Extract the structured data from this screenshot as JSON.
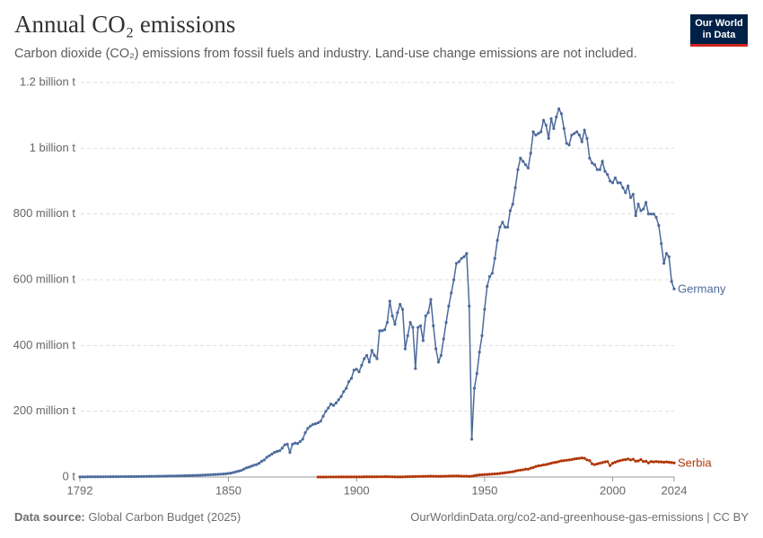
{
  "chart_data": {
    "type": "line",
    "title": "Annual CO₂ emissions",
    "subtitle": "Carbon dioxide (CO₂) emissions from fossil fuels and industry. Land-use change emissions are not included.",
    "logo": [
      "Our World",
      "in Data"
    ],
    "source_label": "Data source:",
    "source": "Global Carbon Budget (2025)",
    "url": "OurWorldinData.org/co2-and-greenhouse-gas-emissions | CC BY",
    "xlim": [
      1792,
      2024
    ],
    "xticks": [
      1792,
      1850,
      1900,
      1950,
      2000,
      2024
    ],
    "ylim": [
      0,
      1200000000
    ],
    "yticks": [
      {
        "value": 0,
        "label": "0 t"
      },
      {
        "value": 200000000,
        "label": "200 million t"
      },
      {
        "value": 400000000,
        "label": "400 million t"
      },
      {
        "value": 600000000,
        "label": "600 million t"
      },
      {
        "value": 800000000,
        "label": "800 million t"
      },
      {
        "value": 1000000000,
        "label": "1 billion t"
      },
      {
        "value": 1200000000,
        "label": "1.2 billion t"
      }
    ],
    "grid": true,
    "x": [
      1792,
      1793,
      1794,
      1795,
      1796,
      1797,
      1798,
      1799,
      1800,
      1801,
      1802,
      1803,
      1804,
      1805,
      1806,
      1807,
      1808,
      1809,
      1810,
      1811,
      1812,
      1813,
      1814,
      1815,
      1816,
      1817,
      1818,
      1819,
      1820,
      1821,
      1822,
      1823,
      1824,
      1825,
      1826,
      1827,
      1828,
      1829,
      1830,
      1831,
      1832,
      1833,
      1834,
      1835,
      1836,
      1837,
      1838,
      1839,
      1840,
      1841,
      1842,
      1843,
      1844,
      1845,
      1846,
      1847,
      1848,
      1849,
      1850,
      1851,
      1852,
      1853,
      1854,
      1855,
      1856,
      1857,
      1858,
      1859,
      1860,
      1861,
      1862,
      1863,
      1864,
      1865,
      1866,
      1867,
      1868,
      1869,
      1870,
      1871,
      1872,
      1873,
      1874,
      1875,
      1876,
      1877,
      1878,
      1879,
      1880,
      1881,
      1882,
      1883,
      1884,
      1885,
      1886,
      1887,
      1888,
      1889,
      1890,
      1891,
      1892,
      1893,
      1894,
      1895,
      1896,
      1897,
      1898,
      1899,
      1900,
      1901,
      1902,
      1903,
      1904,
      1905,
      1906,
      1907,
      1908,
      1909,
      1910,
      1911,
      1912,
      1913,
      1914,
      1915,
      1916,
      1917,
      1918,
      1919,
      1920,
      1921,
      1922,
      1923,
      1924,
      1925,
      1926,
      1927,
      1928,
      1929,
      1930,
      1931,
      1932,
      1933,
      1934,
      1935,
      1936,
      1937,
      1938,
      1939,
      1940,
      1941,
      1942,
      1943,
      1944,
      1945,
      1946,
      1947,
      1948,
      1949,
      1950,
      1951,
      1952,
      1953,
      1954,
      1955,
      1956,
      1957,
      1958,
      1959,
      1960,
      1961,
      1962,
      1963,
      1964,
      1965,
      1966,
      1967,
      1968,
      1969,
      1970,
      1971,
      1972,
      1973,
      1974,
      1975,
      1976,
      1977,
      1978,
      1979,
      1980,
      1981,
      1982,
      1983,
      1984,
      1985,
      1986,
      1987,
      1988,
      1989,
      1990,
      1991,
      1992,
      1993,
      1994,
      1995,
      1996,
      1997,
      1998,
      1999,
      2000,
      2001,
      2002,
      2003,
      2004,
      2005,
      2006,
      2007,
      2008,
      2009,
      2010,
      2011,
      2012,
      2013,
      2014,
      2015,
      2016,
      2017,
      2018,
      2019,
      2020,
      2021,
      2022,
      2023,
      2024
    ],
    "series": [
      {
        "name": "Germany",
        "color": "#4c6a9c",
        "values": [
          500000,
          500000,
          500000,
          600000,
          600000,
          600000,
          700000,
          700000,
          800000,
          800000,
          900000,
          900000,
          1000000,
          1000000,
          1100000,
          1100000,
          1200000,
          1200000,
          1300000,
          1300000,
          1400000,
          1500000,
          1500000,
          1600000,
          1700000,
          1800000,
          1900000,
          2000000,
          2100000,
          2200000,
          2300000,
          2400000,
          2500000,
          2700000,
          2800000,
          3000000,
          3100000,
          3300000,
          3500000,
          3600000,
          3800000,
          4000000,
          4200000,
          4400000,
          4700000,
          5000000,
          5300000,
          5600000,
          6000000,
          6300000,
          6700000,
          7000000,
          7400000,
          7800000,
          8200000,
          8700000,
          9200000,
          9800000,
          11000000,
          12000000,
          14000000,
          16000000,
          18000000,
          20000000,
          24000000,
          28000000,
          30000000,
          33000000,
          36000000,
          38000000,
          42000000,
          48000000,
          52000000,
          60000000,
          65000000,
          70000000,
          75000000,
          78000000,
          80000000,
          88000000,
          98000000,
          100000000,
          75000000,
          100000000,
          103000000,
          102000000,
          108000000,
          115000000,
          135000000,
          148000000,
          155000000,
          160000000,
          162000000,
          165000000,
          170000000,
          185000000,
          200000000,
          210000000,
          222000000,
          218000000,
          225000000,
          235000000,
          245000000,
          260000000,
          270000000,
          290000000,
          300000000,
          325000000,
          328000000,
          320000000,
          340000000,
          360000000,
          370000000,
          350000000,
          385000000,
          370000000,
          360000000,
          445000000,
          445000000,
          448000000,
          470000000,
          535000000,
          490000000,
          465000000,
          500000000,
          525000000,
          510000000,
          390000000,
          430000000,
          470000000,
          455000000,
          330000000,
          455000000,
          460000000,
          415000000,
          490000000,
          500000000,
          540000000,
          460000000,
          390000000,
          350000000,
          370000000,
          420000000,
          470000000,
          520000000,
          560000000,
          600000000,
          650000000,
          655000000,
          665000000,
          670000000,
          680000000,
          520000000,
          115000000,
          270000000,
          315000000,
          380000000,
          430000000,
          510000000,
          580000000,
          610000000,
          620000000,
          665000000,
          720000000,
          760000000,
          775000000,
          760000000,
          760000000,
          810000000,
          830000000,
          880000000,
          935000000,
          970000000,
          960000000,
          950000000,
          940000000,
          985000000,
          1050000000,
          1040000000,
          1045000000,
          1050000000,
          1085000000,
          1070000000,
          1030000000,
          1090000000,
          1060000000,
          1095000000,
          1120000000,
          1105000000,
          1060000000,
          1015000000,
          1010000000,
          1040000000,
          1045000000,
          1050000000,
          1040000000,
          1020000000,
          1055000000,
          1030000000,
          970000000,
          955000000,
          950000000,
          935000000,
          935000000,
          960000000,
          930000000,
          920000000,
          900000000,
          895000000,
          910000000,
          895000000,
          895000000,
          880000000,
          865000000,
          885000000,
          850000000,
          860000000,
          795000000,
          830000000,
          810000000,
          815000000,
          835000000,
          800000000,
          800000000,
          800000000,
          790000000,
          765000000,
          710000000,
          650000000,
          680000000,
          670000000,
          595000000,
          572000000
        ]
      },
      {
        "name": "Serbia",
        "color": "#b13507",
        "values": [
          null,
          null,
          null,
          null,
          null,
          null,
          null,
          null,
          null,
          null,
          null,
          null,
          null,
          null,
          null,
          null,
          null,
          null,
          null,
          null,
          null,
          null,
          null,
          null,
          null,
          null,
          null,
          null,
          null,
          null,
          null,
          null,
          null,
          null,
          null,
          null,
          null,
          null,
          null,
          null,
          null,
          null,
          null,
          null,
          null,
          null,
          null,
          null,
          null,
          null,
          null,
          null,
          null,
          null,
          null,
          null,
          null,
          null,
          null,
          null,
          null,
          null,
          null,
          null,
          null,
          null,
          null,
          null,
          null,
          null,
          null,
          null,
          null,
          null,
          null,
          null,
          null,
          null,
          null,
          null,
          null,
          null,
          null,
          null,
          null,
          null,
          null,
          null,
          null,
          null,
          null,
          null,
          null,
          100000,
          100000,
          100000,
          100000,
          200000,
          200000,
          200000,
          200000,
          300000,
          300000,
          300000,
          300000,
          400000,
          400000,
          400000,
          500000,
          500000,
          500000,
          600000,
          600000,
          700000,
          700000,
          800000,
          800000,
          900000,
          900000,
          1000000,
          1000000,
          900000,
          800000,
          500000,
          400000,
          400000,
          500000,
          800000,
          1000000,
          1200000,
          1400000,
          1600000,
          1700000,
          1900000,
          2000000,
          2100000,
          2300000,
          2500000,
          2400000,
          2200000,
          2000000,
          2100000,
          2300000,
          2500000,
          2700000,
          3000000,
          3200000,
          3300000,
          3300000,
          2500000,
          2500000,
          2400000,
          2000000,
          2500000,
          4000000,
          5500000,
          6500000,
          7000000,
          7500000,
          8000000,
          8500000,
          9000000,
          9500000,
          10000000,
          11000000,
          12000000,
          13000000,
          14000000,
          15000000,
          16000000,
          18000000,
          20000000,
          21000000,
          22000000,
          24000000,
          24000000,
          27000000,
          29000000,
          32000000,
          34000000,
          35000000,
          37000000,
          38000000,
          40000000,
          42000000,
          44000000,
          45000000,
          47000000,
          49000000,
          50000000,
          51000000,
          52000000,
          53000000,
          55000000,
          56000000,
          57000000,
          58000000,
          57000000,
          52000000,
          50000000,
          40000000,
          38000000,
          40000000,
          42000000,
          44000000,
          46000000,
          47000000,
          35000000,
          42000000,
          45000000,
          48000000,
          50000000,
          52000000,
          53000000,
          55000000,
          52000000,
          54000000,
          48000000,
          49000000,
          53000000,
          47000000,
          48000000,
          43000000,
          47000000,
          46000000,
          47000000,
          46000000,
          46000000,
          45000000,
          46000000,
          45000000,
          44000000,
          43000000
        ]
      }
    ]
  }
}
